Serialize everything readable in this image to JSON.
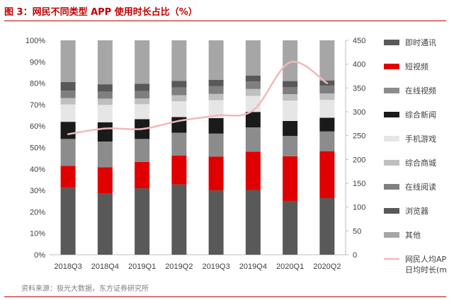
{
  "title": "图 3：网民不同类型 APP 使用时长占比（%）",
  "source": "资料来源：极光大数据，东方证券研究所",
  "chart_data": {
    "type": "bar",
    "stacked": true,
    "categories": [
      "2018Q3",
      "2018Q4",
      "2019Q1",
      "2019Q2",
      "2019Q3",
      "2019Q4",
      "2020Q1",
      "2020Q2"
    ],
    "ylim": [
      0,
      100
    ],
    "y_ticks": [
      "0%",
      "10%",
      "20%",
      "30%",
      "40%",
      "50%",
      "60%",
      "70%",
      "80%",
      "90%",
      "100%"
    ],
    "y2lim": [
      0,
      450
    ],
    "y2_ticks": [
      "0",
      "50",
      "100",
      "150",
      "200",
      "250",
      "300",
      "350",
      "400",
      "450"
    ],
    "grid": false,
    "legend_position": "right",
    "series": [
      {
        "name": "其他",
        "color": "#a6a6a6",
        "values": [
          19.4,
          20.5,
          20.3,
          18.9,
          18.4,
          16.4,
          19.0,
          18.7
        ]
      },
      {
        "name": "浏览器",
        "color": "#595959",
        "values": [
          4.1,
          3.4,
          3.4,
          3.1,
          3.0,
          2.8,
          2.9,
          2.5
        ]
      },
      {
        "name": "在线阅读",
        "color": "#7f7f7f",
        "values": [
          3.4,
          3.3,
          3.4,
          3.6,
          3.6,
          3.5,
          3.2,
          3.6
        ]
      },
      {
        "name": "综合商城",
        "color": "#bfbfbf",
        "values": [
          3.0,
          2.9,
          2.7,
          2.8,
          2.9,
          3.2,
          3.0,
          3.0
        ]
      },
      {
        "name": "手机游戏",
        "color": "#e6e6e6",
        "values": [
          8.1,
          8.1,
          7.0,
          7.4,
          8.4,
          7.5,
          9.5,
          8.3
        ]
      },
      {
        "name": "综合新闻",
        "color": "#1a1a1a",
        "values": [
          8.0,
          9.0,
          9.2,
          7.3,
          7.2,
          7.2,
          7.0,
          6.4
        ]
      },
      {
        "name": "在线视频",
        "color": "#8c8c8c",
        "values": [
          12.6,
          12.0,
          10.7,
          10.6,
          10.7,
          11.3,
          9.5,
          9.2
        ]
      },
      {
        "name": "短视频",
        "color": "#e00000",
        "values": [
          10.1,
          12.1,
          12.3,
          13.5,
          15.8,
          17.9,
          20.8,
          21.9
        ]
      },
      {
        "name": "即时通讯",
        "color": "#595959",
        "values": [
          31.3,
          28.7,
          31.0,
          32.8,
          30.0,
          30.2,
          25.1,
          26.4
        ]
      }
    ],
    "legend_order": [
      "即时通讯",
      "短视频",
      "在线视频",
      "综合新闻",
      "手机游戏",
      "综合商城",
      "在线阅读",
      "浏览器",
      "其他"
    ],
    "line": {
      "name": "网民人均AP日均时长(m",
      "label_lines": [
        "网民人均AP",
        "日均时长(m"
      ],
      "color": "#f2b8b8",
      "axis": "right",
      "values": [
        253,
        265,
        264,
        281,
        292,
        303,
        404,
        360
      ]
    }
  }
}
